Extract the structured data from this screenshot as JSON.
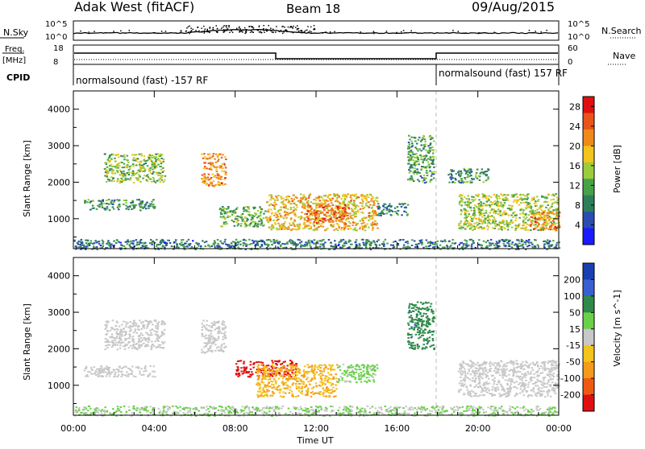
{
  "header": {
    "station": "Adak West (fitACF)",
    "beam": "Beam 18",
    "date": "09/Aug/2015"
  },
  "panels": {
    "nsky_label": "N.Sky",
    "nsearch_label": "N.Search",
    "freq_label_line1": "Freq.",
    "freq_label_line2": "[MHz]",
    "nave_label": "Nave",
    "cpid_label": "CPID",
    "nsky_ticks": [
      "10^5",
      "10^0"
    ],
    "nsearch_ticks": [
      "10^5",
      "10^0"
    ],
    "freq_ticks": [
      "18",
      "8"
    ],
    "nave_ticks": [
      "60",
      "0"
    ],
    "cpid_left": "normalsound (fast) -157 RF",
    "cpid_right": "normalsound (fast) 157 RF"
  },
  "colors": {
    "power_scale": [
      "#1a1aff",
      "#2a4bb0",
      "#2e7d5a",
      "#46a247",
      "#9ccc3a",
      "#f2c41c",
      "#f08a1a",
      "#e9541a",
      "#e01010"
    ],
    "velocity_scale": [
      "#1a3fb0",
      "#3a5fd0",
      "#2e8a4a",
      "#6ad04a",
      "#c8c8c8",
      "#f2c41c",
      "#f59a1a",
      "#ef5a12",
      "#e01010"
    ]
  },
  "chart_data": [
    {
      "type": "heatmap",
      "title": "",
      "xlabel": "",
      "ylabel": "Slant Range [km]",
      "x_ticks": [
        "00:00",
        "04:00",
        "08:00",
        "12:00",
        "16:00",
        "20:00",
        "00:00"
      ],
      "x_range_hours": [
        0,
        24
      ],
      "y_ticks": [
        1000,
        2000,
        3000,
        4000
      ],
      "ylim": [
        180,
        4500
      ],
      "colorbar_label": "Power [dB]",
      "colorbar_ticks": [
        "4",
        "8",
        "12",
        "16",
        "20",
        "24",
        "28"
      ],
      "colorbar_range": [
        0,
        30
      ],
      "regions": [
        {
          "t": [
            0.5,
            4.0
          ],
          "r": [
            1250,
            1550
          ],
          "v": 10
        },
        {
          "t": [
            1.5,
            4.5
          ],
          "r": [
            2000,
            2800
          ],
          "v": 14
        },
        {
          "t": [
            6.3,
            7.5
          ],
          "r": [
            1900,
            2800
          ],
          "v": 22
        },
        {
          "t": [
            7.2,
            9.5
          ],
          "r": [
            800,
            1350
          ],
          "v": 12
        },
        {
          "t": [
            9.5,
            15.0
          ],
          "r": [
            700,
            1700
          ],
          "v": 19
        },
        {
          "t": [
            11.5,
            13.5
          ],
          "r": [
            900,
            1400
          ],
          "v": 24
        },
        {
          "t": [
            15.0,
            16.5
          ],
          "r": [
            1100,
            1450
          ],
          "v": 8
        },
        {
          "t": [
            16.5,
            17.8
          ],
          "r": [
            2000,
            3300
          ],
          "v": 11
        },
        {
          "t": [
            18.5,
            20.5
          ],
          "r": [
            2000,
            2400
          ],
          "v": 10
        },
        {
          "t": [
            19.0,
            24.0
          ],
          "r": [
            700,
            1700
          ],
          "v": 15
        },
        {
          "t": [
            22.5,
            24.0
          ],
          "r": [
            700,
            1200
          ],
          "v": 22
        },
        {
          "t": [
            0.0,
            24.0
          ],
          "r": [
            180,
            450
          ],
          "v": 8
        }
      ]
    },
    {
      "type": "heatmap",
      "title": "",
      "xlabel": "Time UT",
      "ylabel": "Slant Range [km]",
      "x_ticks": [
        "00:00",
        "04:00",
        "08:00",
        "12:00",
        "16:00",
        "20:00",
        "00:00"
      ],
      "x_range_hours": [
        0,
        24
      ],
      "y_ticks": [
        1000,
        2000,
        3000,
        4000
      ],
      "ylim": [
        180,
        4500
      ],
      "colorbar_label": "Velocity [m s^-1]",
      "colorbar_ticks": [
        "200",
        "100",
        "50",
        "15",
        "-15",
        "-50",
        "-100",
        "-200"
      ],
      "colorbar_range": [
        -250,
        250
      ],
      "regions": [
        {
          "t": [
            0.5,
            4.0
          ],
          "r": [
            1250,
            1550
          ],
          "v": 0
        },
        {
          "t": [
            1.5,
            4.5
          ],
          "r": [
            2000,
            2800
          ],
          "v": 0
        },
        {
          "t": [
            6.3,
            7.5
          ],
          "r": [
            1900,
            2800
          ],
          "v": 0
        },
        {
          "t": [
            8.0,
            11.0
          ],
          "r": [
            1250,
            1700
          ],
          "v": -220
        },
        {
          "t": [
            9.0,
            13.0
          ],
          "r": [
            700,
            1600
          ],
          "v": -80
        },
        {
          "t": [
            13.0,
            15.0
          ],
          "r": [
            1100,
            1600
          ],
          "v": 40
        },
        {
          "t": [
            16.5,
            17.8
          ],
          "r": [
            2000,
            3300
          ],
          "v": 120
        },
        {
          "t": [
            19.0,
            24.0
          ],
          "r": [
            700,
            1700
          ],
          "v": 0
        },
        {
          "t": [
            0.0,
            24.0
          ],
          "r": [
            180,
            450
          ],
          "v": 30
        }
      ]
    }
  ]
}
